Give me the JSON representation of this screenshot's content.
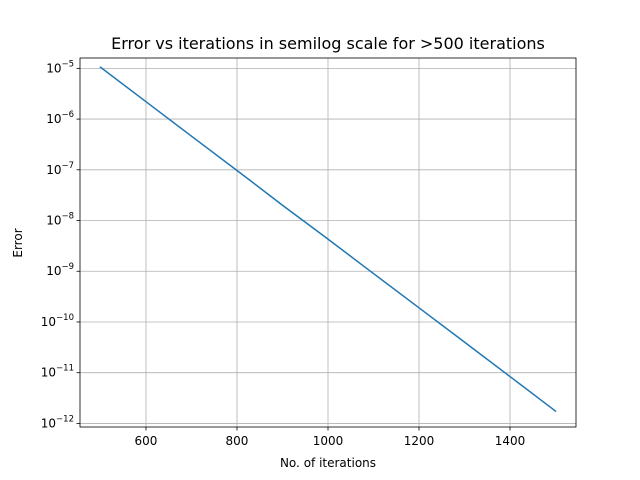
{
  "chart_data": {
    "type": "line",
    "title": "Error vs iterations in semilog scale for >500 iterations",
    "xlabel": "No. of iterations",
    "ylabel": "Error",
    "x_scale": "linear",
    "y_scale": "log",
    "xlim": [
      455,
      1545
    ],
    "ylim": [
      8.5e-13,
      1.6e-05
    ],
    "grid": true,
    "x_ticks": [
      {
        "value": 600,
        "label": "600"
      },
      {
        "value": 800,
        "label": "800"
      },
      {
        "value": 1000,
        "label": "1000"
      },
      {
        "value": 1200,
        "label": "1200"
      },
      {
        "value": 1400,
        "label": "1400"
      }
    ],
    "y_ticks": [
      {
        "value": 1e-12,
        "base": "10",
        "exp": "−12"
      },
      {
        "value": 1e-11,
        "base": "10",
        "exp": "−11"
      },
      {
        "value": 1e-10,
        "base": "10",
        "exp": "−10"
      },
      {
        "value": 1e-09,
        "base": "10",
        "exp": "−9"
      },
      {
        "value": 1e-08,
        "base": "10",
        "exp": "−8"
      },
      {
        "value": 1e-07,
        "base": "10",
        "exp": "−7"
      },
      {
        "value": 1e-06,
        "base": "10",
        "exp": "−6"
      },
      {
        "value": 1e-05,
        "base": "10",
        "exp": "−5"
      }
    ],
    "series": [
      {
        "color": "#1f77b4",
        "x": [
          500,
          600,
          700,
          800,
          900,
          1000,
          1100,
          1200,
          1300,
          1400,
          1500
        ],
        "y": [
          1.05e-05,
          2.2e-06,
          4.6e-07,
          9.7e-08,
          2e-08,
          4.3e-09,
          9e-10,
          1.9e-10,
          4e-11,
          8.4e-12,
          1.75e-12
        ]
      }
    ]
  }
}
